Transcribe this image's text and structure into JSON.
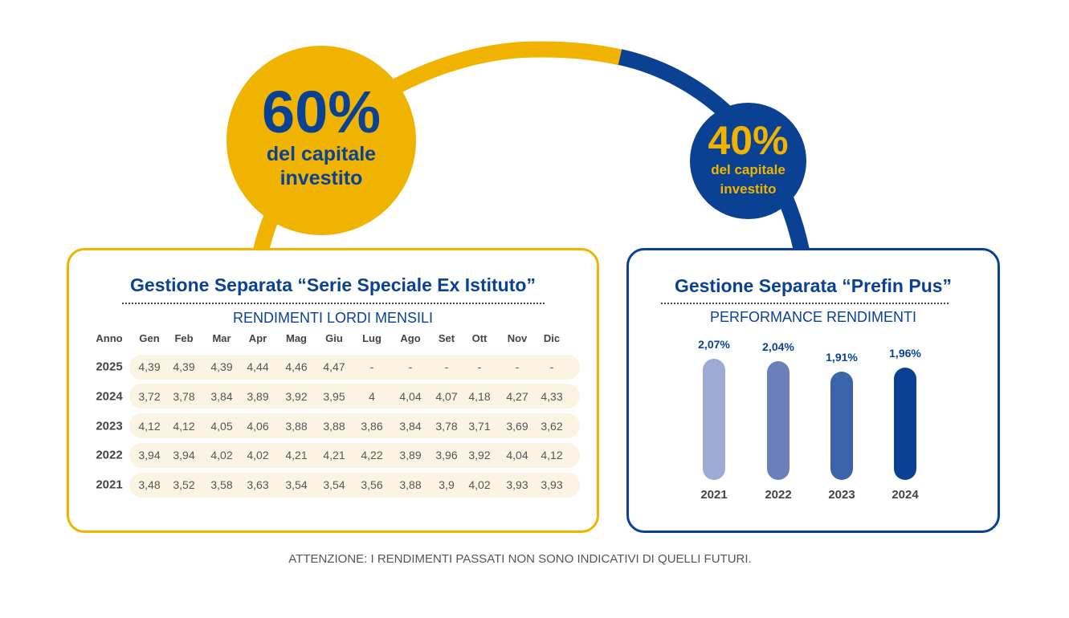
{
  "left_circle": {
    "percent": "60%",
    "caption": "del capitale investito"
  },
  "right_circle": {
    "percent": "40%",
    "caption": "del capitale investito"
  },
  "left_card": {
    "title": "Gestione Separata “Serie Speciale Ex Istituto”",
    "subtitle": "RENDIMENTI LORDI MENSILI",
    "headers": [
      "Anno",
      "Gen",
      "Feb",
      "Mar",
      "Apr",
      "Mag",
      "Giu",
      "Lug",
      "Ago",
      "Set",
      "Ott",
      "Nov",
      "Dic"
    ],
    "rows": [
      {
        "year": "2025",
        "values": [
          "4,39",
          "4,39",
          "4,39",
          "4,44",
          "4,46",
          "4,47",
          "-",
          "-",
          "-",
          "-",
          "-",
          "-"
        ]
      },
      {
        "year": "2024",
        "values": [
          "3,72",
          "3,78",
          "3,84",
          "3,89",
          "3,92",
          "3,95",
          "4",
          "4,04",
          "4,07",
          "4,18",
          "4,27",
          "4,33"
        ]
      },
      {
        "year": "2023",
        "values": [
          "4,12",
          "4,12",
          "4,05",
          "4,06",
          "3,88",
          "3,88",
          "3,86",
          "3,84",
          "3,78",
          "3,71",
          "3,69",
          "3,62"
        ]
      },
      {
        "year": "2022",
        "values": [
          "3,94",
          "3,94",
          "4,02",
          "4,02",
          "4,21",
          "4,21",
          "4,22",
          "3,89",
          "3,96",
          "3,92",
          "4,04",
          "4,12"
        ]
      },
      {
        "year": "2021",
        "values": [
          "3,48",
          "3,52",
          "3,58",
          "3,63",
          "3,54",
          "3,54",
          "3,56",
          "3,88",
          "3,9",
          "4,02",
          "3,93",
          "3,93"
        ]
      }
    ]
  },
  "right_card": {
    "title": "Gestione Separata “Prefin Pus”",
    "subtitle": "PERFORMANCE RENDIMENTI"
  },
  "chart_data": {
    "type": "bar",
    "title": "PERFORMANCE RENDIMENTI",
    "categories": [
      "2021",
      "2022",
      "2023",
      "2024"
    ],
    "values": [
      2.07,
      2.04,
      1.91,
      1.96
    ],
    "data_labels": [
      "2,07%",
      "2,04%",
      "1,91%",
      "1,96%"
    ],
    "colors": [
      "#9ea9d4",
      "#6b80bb",
      "#3c64ab",
      "#0a4193"
    ],
    "xlabel": "",
    "ylabel": ""
  },
  "footer": "ATTENZIONE: I RENDIMENTI PASSATI NON SONO INDICATIVI DI QUELLI FUTURI.",
  "colors": {
    "yellow": "#f0b400",
    "blue": "#0a4193"
  }
}
